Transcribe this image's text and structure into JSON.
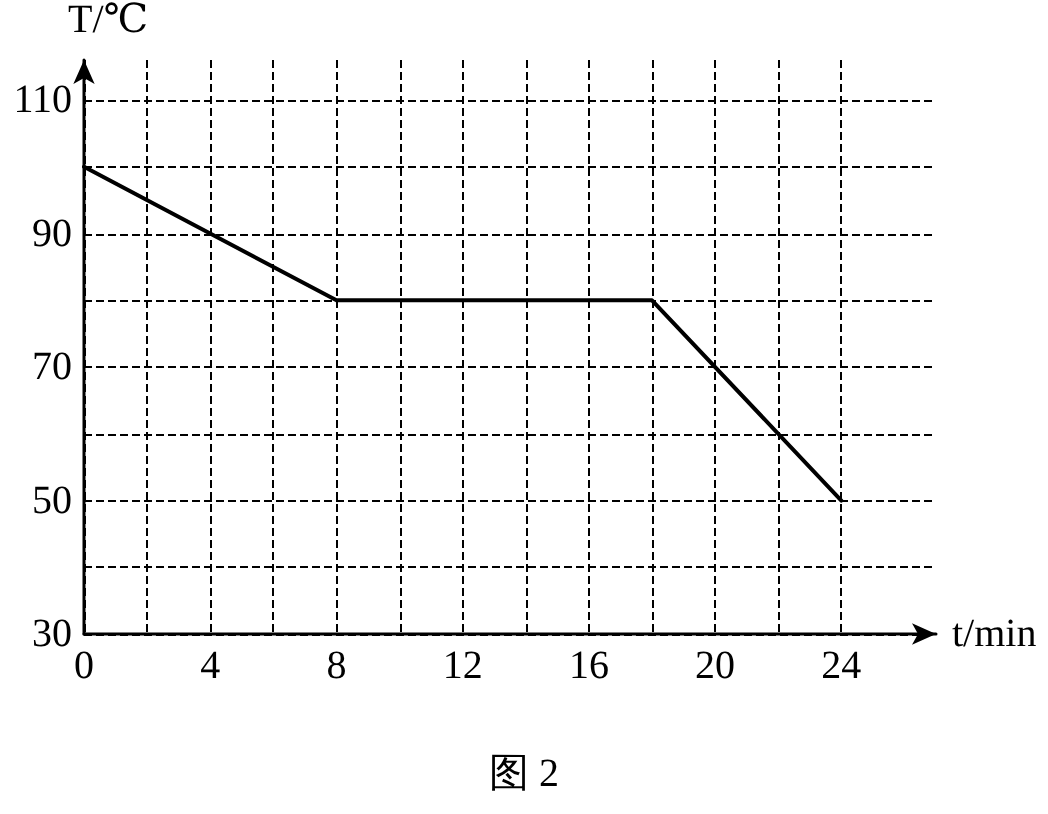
{
  "chart_data": {
    "type": "line",
    "xlabel": "t/min",
    "ylabel": "T/℃",
    "annotations": [
      "图 2"
    ],
    "x": [
      0,
      8,
      18,
      24
    ],
    "series": [
      {
        "color": "#000000",
        "values": [
          100,
          80,
          80,
          50
        ]
      }
    ],
    "xlim": [
      0,
      27
    ],
    "ylim": [
      30,
      116
    ],
    "xticks": [
      0,
      {
        "value": 2,
        "label": null
      },
      4,
      {
        "value": 6,
        "label": null
      },
      8,
      {
        "value": 10,
        "label": null
      },
      12,
      {
        "value": 14,
        "label": null
      },
      16,
      {
        "value": 18,
        "label": null
      },
      20,
      {
        "value": 22,
        "label": null
      },
      24
    ],
    "yticks": [
      30,
      {
        "value": 40,
        "label": null
      },
      50,
      {
        "value": 60,
        "label": null
      },
      70,
      {
        "value": 80,
        "label": null
      },
      90,
      {
        "value": 100,
        "label": null
      },
      110
    ],
    "grid": true,
    "marker": "none",
    "line_style": "solid"
  }
}
